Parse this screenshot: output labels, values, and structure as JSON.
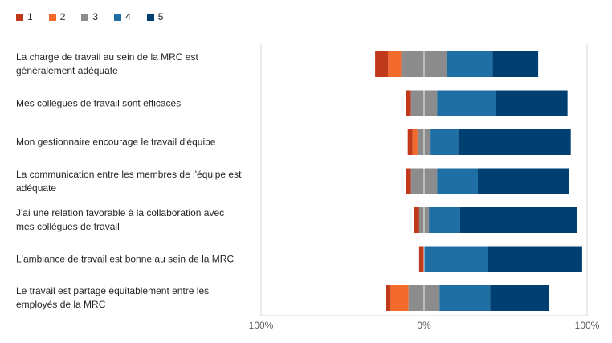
{
  "chart_data": {
    "type": "bar",
    "subtype": "diverging-stacked-horizontal",
    "legend_position": "top-left",
    "grid": true,
    "xlim": [
      -100,
      100
    ],
    "xticks": [
      {
        "value": -100,
        "label": "100%"
      },
      {
        "value": 0,
        "label": "0%"
      },
      {
        "value": 100,
        "label": "100%"
      }
    ],
    "series": [
      {
        "name": "1",
        "color": "#c0391b"
      },
      {
        "name": "2",
        "color": "#f26a2c"
      },
      {
        "name": "3",
        "color": "#8c8c8c"
      },
      {
        "name": "4",
        "color": "#1f6fa5"
      },
      {
        "name": "5",
        "color": "#003f72"
      }
    ],
    "categories": [
      {
        "label": "La charge de travail au sein de la MRC est généralement adéquate",
        "values": [
          8,
          8,
          28,
          28,
          28
        ]
      },
      {
        "label": "Mes collègues de travail sont efficaces",
        "values": [
          3,
          0,
          16,
          36,
          44
        ]
      },
      {
        "label": "Mon gestionnaire encourage le travail d'équipe",
        "values": [
          3,
          3,
          8,
          17,
          69
        ]
      },
      {
        "label": "La communication entre les membres de l'équipe est adéquate",
        "values": [
          3,
          0,
          16,
          25,
          56
        ]
      },
      {
        "label": "J'ai une relation favorable à la collaboration avec mes collègues de travail",
        "values": [
          3,
          0,
          6,
          19,
          72
        ]
      },
      {
        "label": "L'ambiance de travail est bonne au sein de la MRC",
        "values": [
          3,
          0,
          0,
          39,
          58
        ]
      },
      {
        "label": "Le travail est partagé équitablement entre les employés de la MRC",
        "values": [
          3,
          11,
          19,
          31,
          36
        ]
      }
    ]
  }
}
